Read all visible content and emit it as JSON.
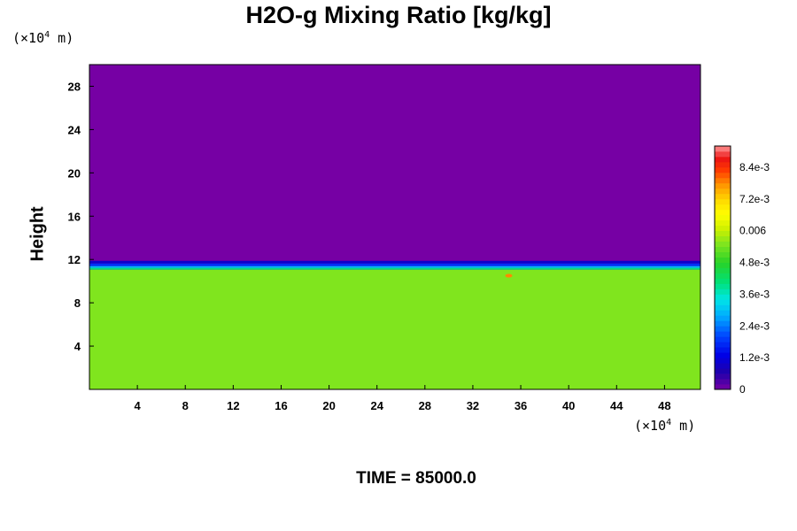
{
  "chart_data": {
    "type": "heatmap",
    "title": "H2O-g Mixing Ratio [kg/kg]",
    "ylabel": "Height",
    "y_unit_prefix": "(×10",
    "y_unit_exp": "4",
    "y_unit_suffix": " m)",
    "x_unit_prefix": "(×10",
    "x_unit_exp": "4",
    "x_unit_suffix": " m)",
    "x_ticks": [
      "4",
      "8",
      "12",
      "16",
      "20",
      "24",
      "28",
      "32",
      "36",
      "40",
      "44",
      "48"
    ],
    "y_ticks": [
      "4",
      "8",
      "12",
      "16",
      "20",
      "24",
      "28"
    ],
    "xlim": [
      0,
      51
    ],
    "ylim": [
      0,
      30
    ],
    "colorbar": {
      "range": [
        0,
        0.0092
      ],
      "tick_labels": [
        "0",
        "1.2e-3",
        "2.4e-3",
        "3.6e-3",
        "4.8e-3",
        "0.006",
        "7.2e-3",
        "8.4e-3"
      ],
      "tick_values": [
        0,
        0.0012,
        0.0024,
        0.0036,
        0.0048,
        0.006,
        0.0072,
        0.0084
      ]
    },
    "field_description_values": {
      "upper_layer_value": 0,
      "lower_layer_value": 0.0055,
      "interface_height": 11.3,
      "local_max_value": 0.0078,
      "local_max_x": 35,
      "local_max_y": 10.5
    },
    "time_label": "TIME = 85000.0"
  }
}
